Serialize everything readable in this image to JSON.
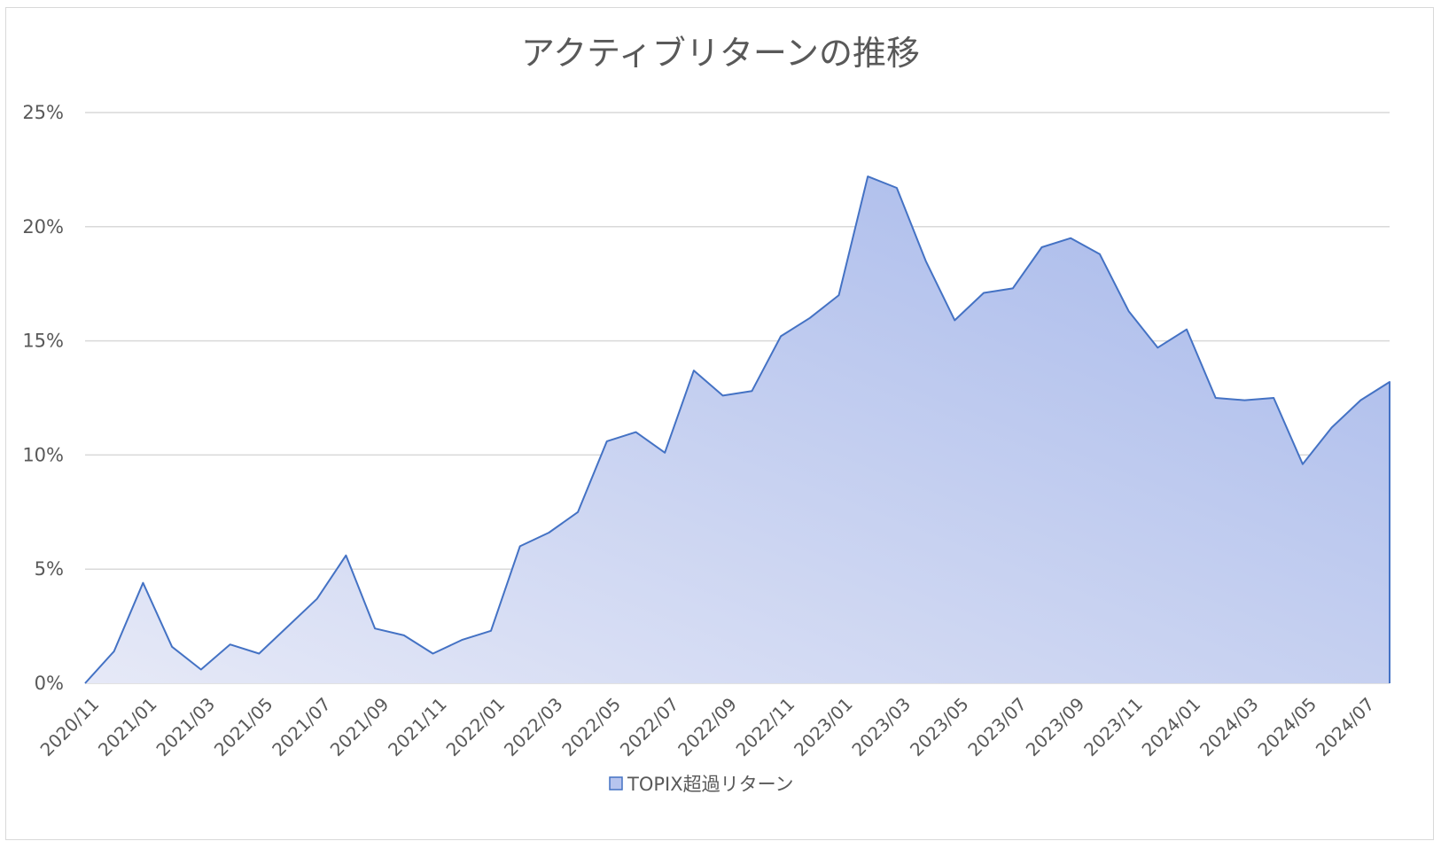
{
  "chart_data": {
    "type": "area",
    "title": "アクティブリターンの推移",
    "xlabel": "",
    "ylabel": "",
    "ylim": [
      0,
      25
    ],
    "y_ticks": [
      "0%",
      "5%",
      "10%",
      "15%",
      "20%",
      "25%"
    ],
    "y_tick_values": [
      0,
      5,
      10,
      15,
      20,
      25
    ],
    "grid": true,
    "legend_position": "bottom",
    "x": [
      "2020/11",
      "2020/12",
      "2021/01",
      "2021/02",
      "2021/03",
      "2021/04",
      "2021/05",
      "2021/06",
      "2021/07",
      "2021/08",
      "2021/09",
      "2021/10",
      "2021/11",
      "2021/12",
      "2022/01",
      "2022/02",
      "2022/03",
      "2022/04",
      "2022/05",
      "2022/06",
      "2022/07",
      "2022/08",
      "2022/09",
      "2022/10",
      "2022/11",
      "2022/12",
      "2023/01",
      "2023/02",
      "2023/03",
      "2023/04",
      "2023/05",
      "2023/06",
      "2023/07",
      "2023/08",
      "2023/09",
      "2023/10",
      "2023/11",
      "2023/12",
      "2024/01",
      "2024/02",
      "2024/03",
      "2024/04",
      "2024/05",
      "2024/06",
      "2024/07",
      "2024/08"
    ],
    "x_tick_labels": [
      "2020/11",
      "2021/01",
      "2021/03",
      "2021/05",
      "2021/07",
      "2021/09",
      "2021/11",
      "2022/01",
      "2022/03",
      "2022/05",
      "2022/07",
      "2022/09",
      "2022/11",
      "2023/01",
      "2023/03",
      "2023/05",
      "2023/07",
      "2023/09",
      "2023/11",
      "2024/01",
      "2024/03",
      "2024/05",
      "2024/07"
    ],
    "series": [
      {
        "name": "TOPIX超過リターン",
        "color": "#4472c4",
        "fill_start": "#e6e9f7",
        "fill_end": "#a5b7ea",
        "values": [
          0.0,
          1.4,
          4.4,
          1.6,
          0.6,
          1.7,
          1.3,
          2.5,
          3.7,
          5.6,
          2.4,
          2.1,
          1.3,
          1.9,
          2.3,
          6.0,
          6.6,
          7.5,
          10.6,
          11.0,
          10.1,
          13.7,
          12.6,
          12.8,
          15.2,
          16.0,
          17.0,
          22.2,
          21.7,
          18.5,
          15.9,
          17.1,
          17.3,
          19.1,
          19.5,
          18.8,
          16.3,
          14.7,
          15.5,
          12.5,
          12.4,
          12.5,
          9.6,
          11.2,
          12.4,
          13.2
        ]
      }
    ]
  }
}
